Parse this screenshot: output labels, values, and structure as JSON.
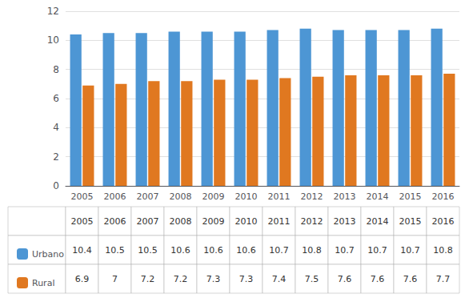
{
  "chart_data": {
    "type": "bar",
    "categories": [
      "2005",
      "2006",
      "2007",
      "2008",
      "2009",
      "2010",
      "2011",
      "2012",
      "2013",
      "2014",
      "2015",
      "2016"
    ],
    "series": [
      {
        "name": "Urbano",
        "color": "#4d96d4",
        "values": [
          10.4,
          10.5,
          10.5,
          10.6,
          10.6,
          10.6,
          10.7,
          10.8,
          10.7,
          10.7,
          10.7,
          10.8
        ]
      },
      {
        "name": "Rural",
        "color": "#e07820",
        "values": [
          6.9,
          7.0,
          7.2,
          7.2,
          7.3,
          7.3,
          7.4,
          7.5,
          7.6,
          7.6,
          7.6,
          7.7
        ]
      }
    ],
    "ylim": [
      0,
      12
    ],
    "yticks": [
      0,
      2,
      4,
      6,
      8,
      10,
      12
    ],
    "grid": true,
    "legend": "bottom"
  }
}
